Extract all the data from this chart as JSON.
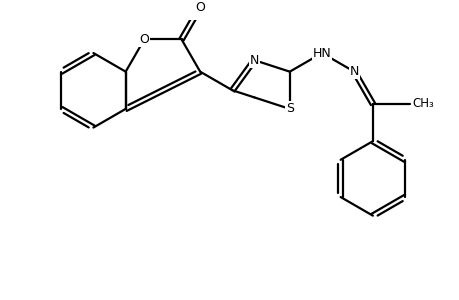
{
  "background_color": "#ffffff",
  "line_color": "#000000",
  "line_width": 1.6,
  "font_size": 9,
  "figsize": [
    4.6,
    3.0
  ],
  "dpi": 100,
  "xlim": [
    0,
    9.2
  ],
  "ylim": [
    -3.2,
    3.5
  ]
}
